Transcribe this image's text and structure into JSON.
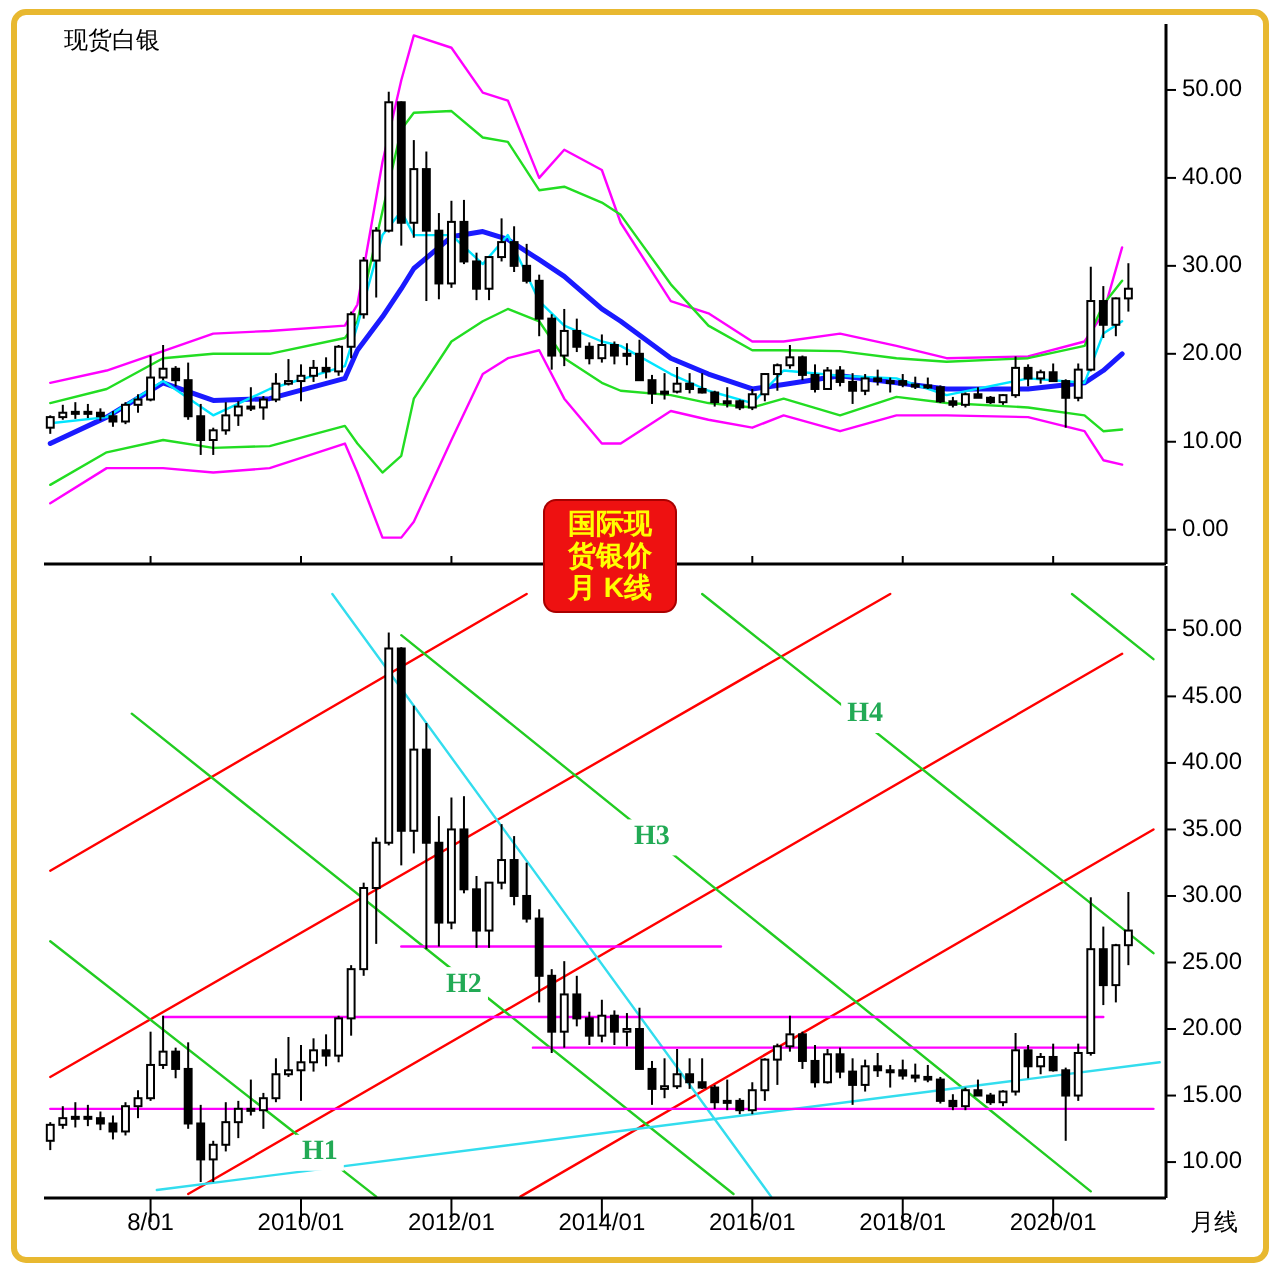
{
  "chart_data": [
    {
      "type": "candlestick",
      "title": "现货白银",
      "tick_labels": "y",
      "xlim": [
        "2006-08",
        "2021-07"
      ],
      "ylim": [
        -3.9,
        57.5
      ],
      "xticks": [
        {
          "value": "2008-01",
          "label": null
        },
        {
          "value": "2010-01",
          "label": null
        },
        {
          "value": "2012-01",
          "label": null
        },
        {
          "value": "2014-01",
          "label": null
        },
        {
          "value": "2016-01",
          "label": null
        },
        {
          "value": "2018-01",
          "label": null
        },
        {
          "value": "2020-01",
          "label": null
        }
      ],
      "yticks": [
        {
          "value": 0,
          "label": "0.00"
        },
        {
          "value": 10,
          "label": "10.00"
        },
        {
          "value": 20,
          "label": "20.00"
        },
        {
          "value": 30,
          "label": "30.00"
        },
        {
          "value": 40,
          "label": "40.00"
        },
        {
          "value": 50,
          "label": "50.00"
        }
      ],
      "x": [
        "2006-09",
        "2006-11",
        "2007-01",
        "2007-03",
        "2007-05",
        "2007-07",
        "2007-09",
        "2007-11",
        "2008-01",
        "2008-03",
        "2008-05",
        "2008-07",
        "2008-09",
        "2008-11",
        "2009-01",
        "2009-03",
        "2009-05",
        "2009-07",
        "2009-09",
        "2009-11",
        "2010-01",
        "2010-03",
        "2010-05",
        "2010-07",
        "2010-09",
        "2010-11",
        "2011-01",
        "2011-03",
        "2011-05",
        "2011-07",
        "2011-09",
        "2011-11",
        "2012-01",
        "2012-03",
        "2012-05",
        "2012-07",
        "2012-09",
        "2012-11",
        "2013-01",
        "2013-03",
        "2013-05",
        "2013-07",
        "2013-09",
        "2013-11",
        "2014-01",
        "2014-03",
        "2014-05",
        "2014-07",
        "2014-09",
        "2014-11",
        "2015-01",
        "2015-03",
        "2015-05",
        "2015-07",
        "2015-09",
        "2015-11",
        "2016-01",
        "2016-03",
        "2016-05",
        "2016-07",
        "2016-09",
        "2016-11",
        "2017-01",
        "2017-03",
        "2017-05",
        "2017-07",
        "2017-09",
        "2017-11",
        "2018-01",
        "2018-03",
        "2018-05",
        "2018-07",
        "2018-09",
        "2018-11",
        "2019-01",
        "2019-03",
        "2019-05",
        "2019-07",
        "2019-09",
        "2019-11",
        "2020-01",
        "2020-03",
        "2020-05",
        "2020-07",
        "2020-09",
        "2020-11",
        "2021-01"
      ],
      "ohlc": [
        [
          11.6,
          13.0,
          10.9,
          12.8
        ],
        [
          12.8,
          14.2,
          12.5,
          13.3
        ],
        [
          13.3,
          14.5,
          12.6,
          13.4
        ],
        [
          13.4,
          14.3,
          12.7,
          13.3
        ],
        [
          13.3,
          13.8,
          12.4,
          12.9
        ],
        [
          12.9,
          13.5,
          11.7,
          12.3
        ],
        [
          12.3,
          14.5,
          12.0,
          14.2
        ],
        [
          14.2,
          15.4,
          13.3,
          14.8
        ],
        [
          14.8,
          19.8,
          14.6,
          17.3
        ],
        [
          17.3,
          21.0,
          17.0,
          18.3
        ],
        [
          18.3,
          18.6,
          16.3,
          17.0
        ],
        [
          17.0,
          19.0,
          12.5,
          12.9
        ],
        [
          12.9,
          14.3,
          8.5,
          10.2
        ],
        [
          10.2,
          11.6,
          8.5,
          11.3
        ],
        [
          11.3,
          14.5,
          10.8,
          13.0
        ],
        [
          13.0,
          14.6,
          11.8,
          14.0
        ],
        [
          14.0,
          16.2,
          13.5,
          13.9
        ],
        [
          13.9,
          15.2,
          12.5,
          14.8
        ],
        [
          14.8,
          17.8,
          14.5,
          16.6
        ],
        [
          16.6,
          19.4,
          16.4,
          16.9
        ],
        [
          16.9,
          18.8,
          14.6,
          17.5
        ],
        [
          17.5,
          19.3,
          16.8,
          18.4
        ],
        [
          18.4,
          19.6,
          17.2,
          18.0
        ],
        [
          18.0,
          21.0,
          17.5,
          20.8
        ],
        [
          20.8,
          24.8,
          19.5,
          24.5
        ],
        [
          24.5,
          31.0,
          24.0,
          30.6
        ],
        [
          30.6,
          34.4,
          26.4,
          34.0
        ],
        [
          34.0,
          49.8,
          33.8,
          48.6
        ],
        [
          48.6,
          48.7,
          32.3,
          34.9
        ],
        [
          34.9,
          44.3,
          33.2,
          41.0
        ],
        [
          41.0,
          43.0,
          26.0,
          34.0
        ],
        [
          34.0,
          36.0,
          26.2,
          28.0
        ],
        [
          28.0,
          37.4,
          27.5,
          35.0
        ],
        [
          35.0,
          37.5,
          30.2,
          30.5
        ],
        [
          30.5,
          31.5,
          26.1,
          27.4
        ],
        [
          27.4,
          31.0,
          26.1,
          31.0
        ],
        [
          31.0,
          35.4,
          30.5,
          32.7
        ],
        [
          32.7,
          34.5,
          29.3,
          30.0
        ],
        [
          30.0,
          32.5,
          28.0,
          28.3
        ],
        [
          28.3,
          29.0,
          22.0,
          24.0
        ],
        [
          24.0,
          24.5,
          18.2,
          19.8
        ],
        [
          19.8,
          25.1,
          18.6,
          22.6
        ],
        [
          22.6,
          24.0,
          20.2,
          20.8
        ],
        [
          20.8,
          21.3,
          18.8,
          19.5
        ],
        [
          19.5,
          22.2,
          19.0,
          21.0
        ],
        [
          21.0,
          21.4,
          18.8,
          19.8
        ],
        [
          19.8,
          21.2,
          18.7,
          20.0
        ],
        [
          20.0,
          21.6,
          17.0,
          17.0
        ],
        [
          17.0,
          17.6,
          14.3,
          15.5
        ],
        [
          15.5,
          17.8,
          14.8,
          15.7
        ],
        [
          15.7,
          18.5,
          15.5,
          16.6
        ],
        [
          16.6,
          17.8,
          15.5,
          16.0
        ],
        [
          16.0,
          17.8,
          15.5,
          15.6
        ],
        [
          15.6,
          15.8,
          14.0,
          14.5
        ],
        [
          14.5,
          16.2,
          13.9,
          14.6
        ],
        [
          14.6,
          14.8,
          13.6,
          13.9
        ],
        [
          13.9,
          16.0,
          13.6,
          15.4
        ],
        [
          15.4,
          17.8,
          14.6,
          17.7
        ],
        [
          17.7,
          18.9,
          15.8,
          18.7
        ],
        [
          18.7,
          21.0,
          18.3,
          19.6
        ],
        [
          19.6,
          19.8,
          17.0,
          17.6
        ],
        [
          17.6,
          18.8,
          15.6,
          16.0
        ],
        [
          16.0,
          18.5,
          15.9,
          18.1
        ],
        [
          18.1,
          18.6,
          16.3,
          16.8
        ],
        [
          16.8,
          17.8,
          14.3,
          15.8
        ],
        [
          15.8,
          17.7,
          15.3,
          17.2
        ],
        [
          17.2,
          18.2,
          16.4,
          16.9
        ],
        [
          16.9,
          17.3,
          15.6,
          16.9
        ],
        [
          16.9,
          17.7,
          16.2,
          16.5
        ],
        [
          16.5,
          17.4,
          16.0,
          16.4
        ],
        [
          16.4,
          17.3,
          16.0,
          16.2
        ],
        [
          16.2,
          16.4,
          14.4,
          14.6
        ],
        [
          14.6,
          15.1,
          13.9,
          14.2
        ],
        [
          14.2,
          15.6,
          13.9,
          15.4
        ],
        [
          15.4,
          16.2,
          15.0,
          15.0
        ],
        [
          15.0,
          15.2,
          14.3,
          14.5
        ],
        [
          14.5,
          15.4,
          14.2,
          15.3
        ],
        [
          15.3,
          19.7,
          15.0,
          18.4
        ],
        [
          18.4,
          18.8,
          16.3,
          17.2
        ],
        [
          17.2,
          18.2,
          16.6,
          17.9
        ],
        [
          17.9,
          18.9,
          16.8,
          16.9
        ],
        [
          16.9,
          17.1,
          11.6,
          15.0
        ],
        [
          15.0,
          18.9,
          14.6,
          18.2
        ],
        [
          18.2,
          29.9,
          18.0,
          26.0
        ],
        [
          26.0,
          27.7,
          21.8,
          23.3
        ],
        [
          23.3,
          26.4,
          22.0,
          26.3
        ],
        [
          26.3,
          30.3,
          24.8,
          27.4
        ]
      ],
      "series": [
        {
          "type": "line",
          "color": "#ff00ff",
          "x": [
            "2006-09",
            "2007-06",
            "2008-03",
            "2008-11",
            "2009-08",
            "2010-08",
            "2010-10",
            "2011-02",
            "2011-05",
            "2011-07",
            "2012-01",
            "2012-06",
            "2012-10",
            "2013-03",
            "2013-07",
            "2014-01",
            "2014-04",
            "2014-12",
            "2015-06",
            "2016-01",
            "2016-06",
            "2017-03",
            "2017-12",
            "2018-08",
            "2019-09",
            "2020-06",
            "2020-09",
            "2020-12"
          ],
          "values": [
            16.7,
            18.1,
            20.3,
            22.3,
            22.6,
            23.2,
            25.6,
            41.8,
            51.1,
            56.2,
            54.8,
            49.7,
            48.8,
            40.0,
            43.2,
            40.9,
            34.9,
            26.0,
            24.6,
            21.4,
            21.4,
            22.3,
            20.9,
            19.5,
            19.7,
            21.4,
            24.6,
            32.1
          ]
        },
        {
          "type": "line",
          "color": "#22dd22",
          "x": [
            "2006-09",
            "2007-06",
            "2008-03",
            "2008-11",
            "2009-08",
            "2010-08",
            "2010-10",
            "2011-02",
            "2011-05",
            "2011-07",
            "2012-01",
            "2012-06",
            "2012-10",
            "2013-03",
            "2013-07",
            "2014-01",
            "2014-04",
            "2014-12",
            "2015-06",
            "2016-01",
            "2016-06",
            "2017-03",
            "2017-12",
            "2018-08",
            "2019-09",
            "2020-06",
            "2020-09",
            "2020-12"
          ],
          "values": [
            14.4,
            16.0,
            19.5,
            20.0,
            20.0,
            21.8,
            23.7,
            36.2,
            45.5,
            47.4,
            47.6,
            44.6,
            44.1,
            38.6,
            39.0,
            37.2,
            35.8,
            27.9,
            23.2,
            20.4,
            20.4,
            20.3,
            19.5,
            19.1,
            19.5,
            20.9,
            25.6,
            28.3
          ]
        },
        {
          "type": "line",
          "color": "#22dd22",
          "x": [
            "2006-09",
            "2007-06",
            "2008-03",
            "2008-11",
            "2009-08",
            "2010-08",
            "2010-10",
            "2011-02",
            "2011-05",
            "2011-07",
            "2012-01",
            "2012-06",
            "2012-10",
            "2013-03",
            "2013-07",
            "2014-01",
            "2014-04",
            "2014-12",
            "2015-06",
            "2016-01",
            "2016-06",
            "2017-03",
            "2017-12",
            "2018-08",
            "2019-09",
            "2020-06",
            "2020-09",
            "2020-12"
          ],
          "values": [
            5.1,
            8.8,
            10.2,
            9.3,
            9.5,
            11.8,
            9.8,
            6.5,
            8.4,
            14.9,
            21.4,
            23.7,
            25.1,
            23.7,
            19.5,
            16.7,
            15.8,
            15.3,
            14.4,
            13.9,
            14.9,
            13.0,
            15.1,
            14.4,
            13.9,
            13.0,
            11.2,
            11.4
          ]
        },
        {
          "type": "line",
          "color": "#ff00ff",
          "x": [
            "2006-09",
            "2007-06",
            "2008-03",
            "2008-11",
            "2009-08",
            "2010-08",
            "2010-10",
            "2011-02",
            "2011-05",
            "2011-07",
            "2012-01",
            "2012-06",
            "2012-10",
            "2013-03",
            "2013-07",
            "2014-01",
            "2014-04",
            "2014-12",
            "2015-06",
            "2016-01",
            "2016-06",
            "2017-03",
            "2017-12",
            "2018-08",
            "2019-09",
            "2020-06",
            "2020-09",
            "2020-12"
          ],
          "values": [
            3.0,
            7.0,
            7.0,
            6.5,
            7.0,
            9.8,
            6.5,
            -0.9,
            -0.9,
            0.9,
            10.2,
            17.7,
            19.5,
            20.4,
            14.9,
            9.8,
            9.8,
            13.5,
            12.5,
            11.6,
            13.0,
            11.2,
            13.0,
            13.0,
            12.8,
            11.2,
            7.9,
            7.4
          ]
        },
        {
          "type": "line",
          "color": "#1a1aff",
          "x": [
            "2006-09",
            "2007-06",
            "2008-03",
            "2008-11",
            "2009-08",
            "2010-08",
            "2010-10",
            "2011-02",
            "2011-05",
            "2011-07",
            "2012-01",
            "2012-06",
            "2012-10",
            "2013-03",
            "2013-07",
            "2014-01",
            "2014-04",
            "2014-12",
            "2015-06",
            "2016-01",
            "2016-06",
            "2017-03",
            "2017-12",
            "2018-08",
            "2019-09",
            "2020-06",
            "2020-09",
            "2020-12"
          ],
          "values": [
            9.8,
            12.8,
            16.7,
            14.7,
            14.9,
            17.2,
            20.4,
            24.2,
            27.4,
            29.7,
            33.3,
            33.9,
            33.0,
            30.7,
            28.8,
            25.1,
            23.7,
            19.5,
            17.7,
            16.0,
            16.5,
            17.5,
            16.7,
            16.0,
            16.0,
            16.7,
            18.1,
            20.0
          ]
        },
        {
          "type": "line",
          "color": "#00e5ff",
          "x": [
            "2006-09",
            "2007-06",
            "2008-03",
            "2008-11",
            "2009-08",
            "2010-08",
            "2010-10",
            "2011-02",
            "2011-05",
            "2011-07",
            "2012-01",
            "2012-06",
            "2012-10",
            "2013-03",
            "2013-07",
            "2014-01",
            "2014-04",
            "2014-12",
            "2015-06",
            "2016-01",
            "2016-06",
            "2017-03",
            "2017-12",
            "2018-08",
            "2019-09",
            "2020-06",
            "2020-09",
            "2020-12"
          ],
          "values": [
            12.1,
            12.8,
            16.9,
            13.0,
            16.0,
            18.6,
            23.2,
            33.5,
            36.2,
            33.5,
            33.5,
            30.2,
            33.5,
            26.0,
            23.2,
            21.4,
            20.9,
            17.7,
            15.8,
            14.4,
            18.1,
            17.5,
            17.2,
            15.3,
            17.2,
            16.7,
            22.3,
            23.7
          ]
        }
      ]
    },
    {
      "type": "candlestick",
      "xlabel": "月线",
      "xlim": [
        "2006-08",
        "2021-07"
      ],
      "ylim": [
        7.3,
        54.8
      ],
      "xticks": [
        {
          "value": "2008-01",
          "label": "8/01"
        },
        {
          "value": "2010-01",
          "label": "2010/01"
        },
        {
          "value": "2012-01",
          "label": "2012/01"
        },
        {
          "value": "2014-01",
          "label": "2014/01"
        },
        {
          "value": "2016-01",
          "label": "2016/01"
        },
        {
          "value": "2018-01",
          "label": "2018/01"
        },
        {
          "value": "2020-01",
          "label": "2020/01"
        }
      ],
      "yticks": [
        {
          "value": 10,
          "label": "10.00"
        },
        {
          "value": 15,
          "label": "15.00"
        },
        {
          "value": 20,
          "label": "20.00"
        },
        {
          "value": 25,
          "label": "25.00"
        },
        {
          "value": 30,
          "label": "30.00"
        },
        {
          "value": 35,
          "label": "35.00"
        },
        {
          "value": 40,
          "label": "40.00"
        },
        {
          "value": 45,
          "label": "45.00"
        },
        {
          "value": 50,
          "label": "50.00"
        }
      ],
      "x": [
        "2006-09",
        "2006-11",
        "2007-01",
        "2007-03",
        "2007-05",
        "2007-07",
        "2007-09",
        "2007-11",
        "2008-01",
        "2008-03",
        "2008-05",
        "2008-07",
        "2008-09",
        "2008-11",
        "2009-01",
        "2009-03",
        "2009-05",
        "2009-07",
        "2009-09",
        "2009-11",
        "2010-01",
        "2010-03",
        "2010-05",
        "2010-07",
        "2010-09",
        "2010-11",
        "2011-01",
        "2011-03",
        "2011-05",
        "2011-07",
        "2011-09",
        "2011-11",
        "2012-01",
        "2012-03",
        "2012-05",
        "2012-07",
        "2012-09",
        "2012-11",
        "2013-01",
        "2013-03",
        "2013-05",
        "2013-07",
        "2013-09",
        "2013-11",
        "2014-01",
        "2014-03",
        "2014-05",
        "2014-07",
        "2014-09",
        "2014-11",
        "2015-01",
        "2015-03",
        "2015-05",
        "2015-07",
        "2015-09",
        "2015-11",
        "2016-01",
        "2016-03",
        "2016-05",
        "2016-07",
        "2016-09",
        "2016-11",
        "2017-01",
        "2017-03",
        "2017-05",
        "2017-07",
        "2017-09",
        "2017-11",
        "2018-01",
        "2018-03",
        "2018-05",
        "2018-07",
        "2018-09",
        "2018-11",
        "2019-01",
        "2019-03",
        "2019-05",
        "2019-07",
        "2019-09",
        "2019-11",
        "2020-01",
        "2020-03",
        "2020-05",
        "2020-07",
        "2020-09",
        "2020-11",
        "2021-01"
      ],
      "ohlc": [
        [
          11.6,
          13.0,
          10.9,
          12.8
        ],
        [
          12.8,
          14.2,
          12.5,
          13.3
        ],
        [
          13.3,
          14.5,
          12.6,
          13.4
        ],
        [
          13.4,
          14.3,
          12.7,
          13.3
        ],
        [
          13.3,
          13.8,
          12.4,
          12.9
        ],
        [
          12.9,
          13.5,
          11.7,
          12.3
        ],
        [
          12.3,
          14.5,
          12.0,
          14.2
        ],
        [
          14.2,
          15.4,
          13.3,
          14.8
        ],
        [
          14.8,
          19.8,
          14.6,
          17.3
        ],
        [
          17.3,
          21.0,
          17.0,
          18.3
        ],
        [
          18.3,
          18.6,
          16.3,
          17.0
        ],
        [
          17.0,
          19.0,
          12.5,
          12.9
        ],
        [
          12.9,
          14.3,
          8.5,
          10.2
        ],
        [
          10.2,
          11.6,
          8.5,
          11.3
        ],
        [
          11.3,
          14.5,
          10.8,
          13.0
        ],
        [
          13.0,
          14.6,
          11.8,
          14.0
        ],
        [
          14.0,
          16.2,
          13.5,
          13.9
        ],
        [
          13.9,
          15.2,
          12.5,
          14.8
        ],
        [
          14.8,
          17.8,
          14.5,
          16.6
        ],
        [
          16.6,
          19.4,
          16.4,
          16.9
        ],
        [
          16.9,
          18.8,
          14.6,
          17.5
        ],
        [
          17.5,
          19.3,
          16.8,
          18.4
        ],
        [
          18.4,
          19.6,
          17.2,
          18.0
        ],
        [
          18.0,
          21.0,
          17.5,
          20.8
        ],
        [
          20.8,
          24.8,
          19.5,
          24.5
        ],
        [
          24.5,
          31.0,
          24.0,
          30.6
        ],
        [
          30.6,
          34.4,
          26.4,
          34.0
        ],
        [
          34.0,
          49.8,
          33.8,
          48.6
        ],
        [
          48.6,
          48.7,
          32.3,
          34.9
        ],
        [
          34.9,
          44.3,
          33.2,
          41.0
        ],
        [
          41.0,
          43.0,
          26.0,
          34.0
        ],
        [
          34.0,
          36.0,
          26.2,
          28.0
        ],
        [
          28.0,
          37.4,
          27.5,
          35.0
        ],
        [
          35.0,
          37.5,
          30.2,
          30.5
        ],
        [
          30.5,
          31.5,
          26.1,
          27.4
        ],
        [
          27.4,
          31.0,
          26.1,
          31.0
        ],
        [
          31.0,
          35.4,
          30.5,
          32.7
        ],
        [
          32.7,
          34.5,
          29.3,
          30.0
        ],
        [
          30.0,
          32.5,
          28.0,
          28.3
        ],
        [
          28.3,
          29.0,
          22.0,
          24.0
        ],
        [
          24.0,
          24.5,
          18.2,
          19.8
        ],
        [
          19.8,
          25.1,
          18.6,
          22.6
        ],
        [
          22.6,
          24.0,
          20.2,
          20.8
        ],
        [
          20.8,
          21.3,
          18.8,
          19.5
        ],
        [
          19.5,
          22.2,
          19.0,
          21.0
        ],
        [
          21.0,
          21.4,
          18.8,
          19.8
        ],
        [
          19.8,
          21.2,
          18.7,
          20.0
        ],
        [
          20.0,
          21.6,
          17.0,
          17.0
        ],
        [
          17.0,
          17.6,
          14.3,
          15.5
        ],
        [
          15.5,
          17.8,
          14.8,
          15.7
        ],
        [
          15.7,
          18.5,
          15.5,
          16.6
        ],
        [
          16.6,
          17.8,
          15.5,
          16.0
        ],
        [
          16.0,
          17.8,
          15.5,
          15.6
        ],
        [
          15.6,
          15.8,
          14.0,
          14.5
        ],
        [
          14.5,
          16.2,
          13.9,
          14.6
        ],
        [
          14.6,
          14.8,
          13.6,
          13.9
        ],
        [
          13.9,
          16.0,
          13.6,
          15.4
        ],
        [
          15.4,
          17.8,
          14.6,
          17.7
        ],
        [
          17.7,
          18.9,
          15.8,
          18.7
        ],
        [
          18.7,
          21.0,
          18.3,
          19.6
        ],
        [
          19.6,
          19.8,
          17.0,
          17.6
        ],
        [
          17.6,
          18.8,
          15.6,
          16.0
        ],
        [
          16.0,
          18.5,
          15.9,
          18.1
        ],
        [
          18.1,
          18.6,
          16.3,
          16.8
        ],
        [
          16.8,
          17.8,
          14.3,
          15.8
        ],
        [
          15.8,
          17.7,
          15.3,
          17.2
        ],
        [
          17.2,
          18.2,
          16.4,
          16.9
        ],
        [
          16.9,
          17.3,
          15.6,
          16.9
        ],
        [
          16.9,
          17.7,
          16.2,
          16.5
        ],
        [
          16.5,
          17.4,
          16.0,
          16.4
        ],
        [
          16.4,
          17.3,
          16.0,
          16.2
        ],
        [
          16.2,
          16.4,
          14.4,
          14.6
        ],
        [
          14.6,
          15.1,
          13.9,
          14.2
        ],
        [
          14.2,
          15.6,
          13.9,
          15.4
        ],
        [
          15.4,
          16.2,
          15.0,
          15.0
        ],
        [
          15.0,
          15.2,
          14.3,
          14.5
        ],
        [
          14.5,
          15.4,
          14.2,
          15.3
        ],
        [
          15.3,
          19.7,
          15.0,
          18.4
        ],
        [
          18.4,
          18.8,
          16.3,
          17.2
        ],
        [
          17.2,
          18.2,
          16.6,
          17.9
        ],
        [
          17.9,
          18.9,
          16.8,
          16.9
        ],
        [
          16.9,
          17.1,
          11.6,
          15.0
        ],
        [
          15.0,
          18.9,
          14.6,
          18.2
        ],
        [
          18.2,
          29.9,
          18.0,
          26.0
        ],
        [
          26.0,
          27.7,
          21.8,
          23.3
        ],
        [
          23.3,
          26.4,
          22.0,
          26.3
        ],
        [
          26.3,
          30.3,
          24.8,
          27.4
        ]
      ],
      "series": [
        {
          "type": "line",
          "color": "#ff0000",
          "x": [
            "2006-09",
            "2013-01"
          ],
          "values": [
            31.9,
            52.7
          ]
        },
        {
          "type": "line",
          "color": "#ff0000",
          "x": [
            "2006-09",
            "2017-11"
          ],
          "values": [
            16.4,
            52.7
          ]
        },
        {
          "type": "line",
          "color": "#ff0000",
          "x": [
            "2008-07",
            "2020-12"
          ],
          "values": [
            7.6,
            48.2
          ]
        },
        {
          "type": "line",
          "color": "#ff0000",
          "x": [
            "2012-12",
            "2021-05"
          ],
          "values": [
            7.4,
            35.0
          ]
        },
        {
          "type": "line",
          "color": "#22cc22",
          "x": [
            "2006-09",
            "2011-01"
          ],
          "values": [
            26.6,
            7.4
          ]
        },
        {
          "type": "line",
          "color": "#22cc22",
          "x": [
            "2007-10",
            "2015-10"
          ],
          "values": [
            43.7,
            7.6
          ]
        },
        {
          "type": "line",
          "color": "#22cc22",
          "x": [
            "2011-05",
            "2020-07"
          ],
          "values": [
            49.6,
            7.8
          ]
        },
        {
          "type": "line",
          "color": "#22cc22",
          "x": [
            "2015-05",
            "2021-05"
          ],
          "values": [
            52.7,
            25.7
          ]
        },
        {
          "type": "line",
          "color": "#22cc22",
          "x": [
            "2020-04",
            "2021-05"
          ],
          "values": [
            52.7,
            47.8
          ]
        },
        {
          "type": "line",
          "color": "#33ddee",
          "x": [
            "2010-06",
            "2016-04"
          ],
          "values": [
            52.7,
            7.4
          ]
        },
        {
          "type": "line",
          "color": "#33ddee",
          "x": [
            "2008-02",
            "2021-06"
          ],
          "values": [
            7.9,
            17.5
          ]
        },
        {
          "type": "line",
          "color": "#ff00ff",
          "x": [
            "2006-09",
            "2021-05"
          ],
          "values": [
            14.0,
            14.0
          ]
        },
        {
          "type": "line",
          "color": "#ff00ff",
          "x": [
            "2008-03",
            "2020-09"
          ],
          "values": [
            20.9,
            20.9
          ]
        },
        {
          "type": "line",
          "color": "#ff00ff",
          "x": [
            "2013-02",
            "2020-07"
          ],
          "values": [
            18.6,
            18.6
          ]
        },
        {
          "type": "line",
          "color": "#ff00ff",
          "x": [
            "2011-05",
            "2015-08"
          ],
          "values": [
            26.2,
            26.2
          ]
        }
      ],
      "annotations": [
        {
          "text": "H1",
          "x": "2010-04",
          "y": 10.7
        },
        {
          "text": "H2",
          "x": "2012-03",
          "y": 23.3
        },
        {
          "text": "H3",
          "x": "2014-09",
          "y": 34.4
        },
        {
          "text": "H4",
          "x": "2017-07",
          "y": 43.6
        },
        "国际现货银价月 K线"
      ]
    }
  ]
}
